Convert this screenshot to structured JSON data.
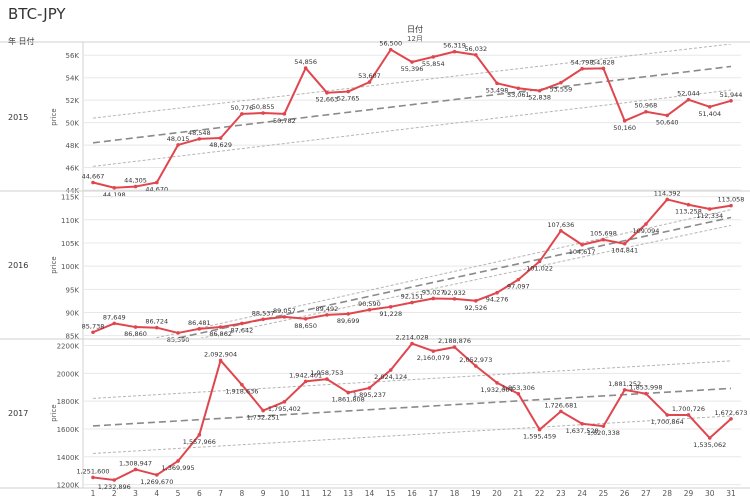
{
  "title": "BTC-JPY",
  "row_header": "年 日付",
  "column_header": "日付",
  "column_subheader": "12月",
  "measure_label": "price",
  "colors": {
    "line": "#e0464e",
    "trend": "#8a8a8a",
    "band": "#b5b5b5",
    "grid": "#e8e8e8",
    "text": "#333333"
  },
  "chart_data": {
    "type": "line",
    "title": "BTC-JPY",
    "xlabel": "",
    "x": [
      1,
      2,
      3,
      4,
      5,
      6,
      7,
      8,
      9,
      10,
      11,
      12,
      13,
      14,
      15,
      16,
      17,
      18,
      19,
      20,
      21,
      22,
      23,
      24,
      25,
      26,
      27,
      28,
      29,
      30,
      31
    ],
    "panels": [
      {
        "year": "2015",
        "ylabel": "price",
        "ylim": [
          44000,
          57000
        ],
        "yticks": [
          44000,
          46000,
          48000,
          50000,
          52000,
          54000,
          56000
        ],
        "ytick_labels": [
          "44K",
          "46K",
          "48K",
          "50K",
          "52K",
          "54K",
          "56K"
        ],
        "values": [
          44667,
          44198,
          44305,
          44670,
          48015,
          48548,
          48629,
          50776,
          50855,
          50782,
          54856,
          52663,
          52765,
          53607,
          56500,
          55396,
          55854,
          56319,
          56032,
          53498,
          53061,
          52838,
          53559,
          54798,
          54828,
          50160,
          50968,
          50640,
          52044,
          51404,
          51944
        ],
        "labels": [
          "44,667",
          "44,198",
          "44,305",
          "44,670",
          "48,015",
          "48,548",
          "48,629",
          "50,776",
          "50,855",
          "50,782",
          "54,856",
          "52,663",
          "52,765",
          "53,607",
          "56,500",
          "55,396",
          "55,854",
          "56,319",
          "56,032",
          "53,498",
          "53,061",
          "52,838",
          "53,559",
          "54,798",
          "54,828",
          "50,160",
          "50,968",
          "50,640",
          "52,044",
          "51,404",
          "51,944"
        ],
        "trend": [
          48200,
          55000
        ],
        "band_upper": [
          50400,
          57000
        ],
        "band_lower": [
          46100,
          52900
        ]
      },
      {
        "year": "2016",
        "ylabel": "price",
        "ylim": [
          84500,
          116000
        ],
        "yticks": [
          85000,
          90000,
          95000,
          100000,
          105000,
          110000,
          115000
        ],
        "ytick_labels": [
          "85K",
          "90K",
          "95K",
          "100K",
          "105K",
          "110K",
          "115K"
        ],
        "values": [
          85738,
          87649,
          86860,
          86724,
          85590,
          86481,
          86862,
          87642,
          88537,
          89057,
          88650,
          89492,
          89699,
          90590,
          91228,
          92151,
          93027,
          92932,
          92526,
          94276,
          97097,
          101022,
          107636,
          104617,
          105698,
          104841,
          109094,
          114392,
          113258,
          112334,
          113058
        ],
        "labels": [
          "85,738",
          "87,649",
          "86,860",
          "86,724",
          "85,590",
          "86,481",
          "86,862",
          "87,642",
          "88,537",
          "89,057",
          "88,650",
          "89,492",
          "89,699",
          "90,590",
          "91,228",
          "92,151",
          "93,027",
          "92,932",
          "92,526",
          "94,276",
          "97,097",
          "101,022",
          "107,636",
          "104,617",
          "105,698",
          "104,841",
          "109,094",
          "114,392",
          "113,258",
          "112,334",
          "113,058"
        ],
        "trend": [
          80500,
          110500
        ],
        "band_upper": [
          81500,
          112200
        ],
        "band_lower": [
          79500,
          108800
        ]
      },
      {
        "year": "2017",
        "ylabel": "price",
        "ylim": [
          1190000,
          2240000
        ],
        "yticks": [
          1200000,
          1400000,
          1600000,
          1800000,
          2000000,
          2200000
        ],
        "ytick_labels": [
          "1200K",
          "1400K",
          "1600K",
          "1800K",
          "2000K",
          "2200K"
        ],
        "values": [
          1251600,
          1232896,
          1308947,
          1269670,
          1369995,
          1557966,
          2092904,
          1918636,
          1732251,
          1795402,
          1942401,
          1958753,
          1861808,
          1895237,
          2024124,
          2214028,
          2160079,
          2188876,
          2052973,
          1932007,
          1853306,
          1595459,
          1726681,
          1637528,
          1620338,
          1881252,
          1853998,
          1700864,
          1700726,
          1535062,
          1672673
        ],
        "labels": [
          "1,251,600",
          "1,232,896",
          "1,308,947",
          "1,269,670",
          "1,369,995",
          "1,557,966",
          "2,092,904",
          "1,918,636",
          "1,732,251",
          "1,795,402",
          "1,942,401",
          "1,958,753",
          "1,861,808",
          "1,895,237",
          "2,024,124",
          "2,214,028",
          "2,160,079",
          "2,188,876",
          "2,052,973",
          "1,932,007",
          "1,853,306",
          "1,595,459",
          "1,726,681",
          "1,637,528",
          "1,620,338",
          "1,881,252",
          "1,853,998",
          "1,700,864",
          "1,700,726",
          "1,535,062",
          "1,672,673"
        ],
        "trend": [
          1622000,
          1892000
        ],
        "band_upper": [
          1820000,
          2090000
        ],
        "band_lower": [
          1424000,
          1694000
        ]
      }
    ]
  }
}
